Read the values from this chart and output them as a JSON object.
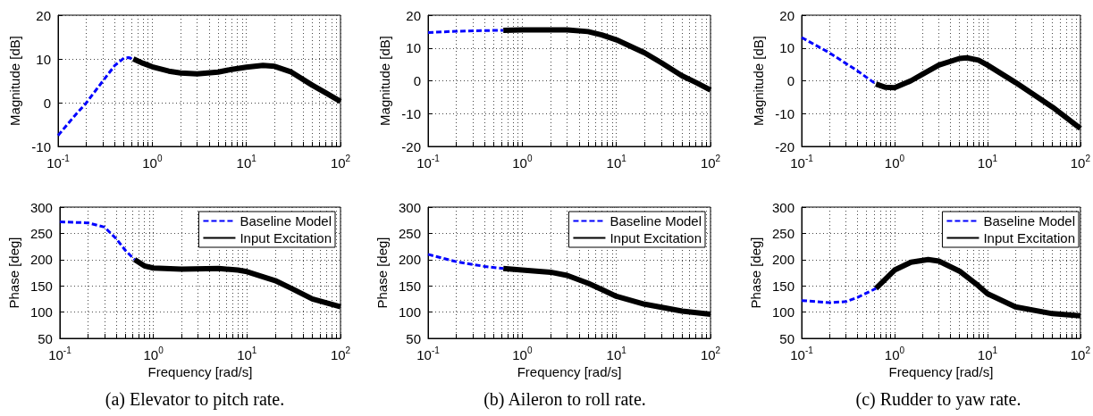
{
  "chart_data": [
    {
      "type": "line",
      "ylabel": "Magnitude [dB]",
      "xlim": [
        0.1,
        100
      ],
      "ylim": [
        -10,
        20
      ],
      "log": "x",
      "grid": true,
      "legend": false,
      "xticks": [
        {
          "value": 0.1,
          "label": "10$^{-1}$"
        },
        {
          "value": 1,
          "label": "10$^{0}$"
        },
        {
          "value": 10,
          "label": "10$^{1}$"
        },
        {
          "value": 100,
          "label": "10$^{2}$"
        }
      ],
      "yticks": [
        -10,
        0,
        10,
        20
      ],
      "series": [
        {
          "color": "#0000ff",
          "line_style": "dashed",
          "x": [
            0.1,
            0.15,
            0.2,
            0.3,
            0.4,
            0.5,
            0.56,
            0.63
          ],
          "values": [
            -7.5,
            -3,
            0,
            5,
            8.5,
            10.2,
            10.3,
            10
          ]
        },
        {
          "color": "#000000",
          "line_style": "solid",
          "x": [
            0.63,
            0.8,
            1,
            1.5,
            2,
            3,
            5,
            7,
            10,
            15,
            20,
            30,
            50,
            70,
            100
          ],
          "values": [
            10,
            9,
            8.2,
            7.2,
            6.8,
            6.6,
            7,
            7.6,
            8.1,
            8.5,
            8.3,
            7,
            4,
            2.2,
            0.3
          ]
        }
      ]
    },
    {
      "type": "line",
      "ylabel": "Magnitude [dB]",
      "xlim": [
        0.1,
        100
      ],
      "ylim": [
        -20,
        20
      ],
      "log": "x",
      "grid": true,
      "legend": false,
      "xticks": [
        {
          "value": 0.1,
          "label": "10$^{-1}$"
        },
        {
          "value": 1,
          "label": "10$^{0}$"
        },
        {
          "value": 10,
          "label": "10$^{1}$"
        },
        {
          "value": 100,
          "label": "10$^{2}$"
        }
      ],
      "yticks": [
        -20,
        -10,
        0,
        10,
        20
      ],
      "series": [
        {
          "color": "#0000ff",
          "line_style": "dashed",
          "x": [
            0.1,
            0.2,
            0.4,
            0.63
          ],
          "values": [
            14.7,
            15.1,
            15.3,
            15.4
          ]
        },
        {
          "color": "#000000",
          "line_style": "solid",
          "x": [
            0.63,
            1,
            2,
            3,
            5,
            7,
            10,
            20,
            30,
            50,
            70,
            100
          ],
          "values": [
            15.4,
            15.5,
            15.5,
            15.5,
            15,
            14,
            12.5,
            8.5,
            5.5,
            1.5,
            -0.5,
            -2.8
          ]
        }
      ]
    },
    {
      "type": "line",
      "ylabel": "Magnitude [dB]",
      "xlim": [
        0.1,
        100
      ],
      "ylim": [
        -20,
        20
      ],
      "log": "x",
      "grid": true,
      "legend": false,
      "xticks": [
        {
          "value": 0.1,
          "label": "10$^{-1}$"
        },
        {
          "value": 1,
          "label": "10$^{0}$"
        },
        {
          "value": 10,
          "label": "10$^{1}$"
        },
        {
          "value": 100,
          "label": "10$^{2}$"
        }
      ],
      "yticks": [
        -20,
        -10,
        0,
        10,
        20
      ],
      "series": [
        {
          "color": "#0000ff",
          "line_style": "dashed",
          "x": [
            0.1,
            0.2,
            0.4,
            0.63
          ],
          "values": [
            13.2,
            8.5,
            3,
            -1
          ]
        },
        {
          "color": "#000000",
          "line_style": "solid",
          "x": [
            0.63,
            0.8,
            1,
            1.5,
            2,
            3,
            5,
            6,
            8,
            10,
            20,
            50,
            100
          ],
          "values": [
            -1,
            -2,
            -2.1,
            0,
            2,
            4.8,
            6.8,
            7,
            6.3,
            4.8,
            -0.5,
            -8,
            -14.5
          ]
        }
      ]
    },
    {
      "type": "line",
      "xlabel": "Frequency [rad/s]",
      "ylabel": "Phase [deg]",
      "xlim": [
        0.1,
        100
      ],
      "ylim": [
        50,
        300
      ],
      "log": "x",
      "grid": true,
      "legend": "top right",
      "xticks": [
        {
          "value": 0.1,
          "label": "10$^{-1}$"
        },
        {
          "value": 1,
          "label": "10$^{0}$"
        },
        {
          "value": 10,
          "label": "10$^{1}$"
        },
        {
          "value": 100,
          "label": "10$^{2}$"
        }
      ],
      "yticks": [
        50,
        100,
        150,
        200,
        250,
        300
      ],
      "annotations": [
        "(a) Elevator to pitch rate."
      ],
      "series": [
        {
          "name": "Baseline Model",
          "color": "#0000ff",
          "line_style": "dashed",
          "x": [
            0.1,
            0.2,
            0.3,
            0.4,
            0.5,
            0.63
          ],
          "values": [
            272,
            270,
            262,
            240,
            218,
            200
          ]
        },
        {
          "name": "Input Excitation",
          "color": "#000000",
          "line_style": "solid",
          "x": [
            0.63,
            0.8,
            1,
            2,
            5,
            8,
            10,
            20,
            30,
            50,
            100
          ],
          "values": [
            200,
            188,
            184,
            182,
            183,
            180,
            177,
            160,
            145,
            125,
            110
          ]
        }
      ]
    },
    {
      "type": "line",
      "xlabel": "Frequency [rad/s]",
      "ylabel": "Phase [deg]",
      "xlim": [
        0.1,
        100
      ],
      "ylim": [
        50,
        300
      ],
      "log": "x",
      "grid": true,
      "legend": "top right",
      "xticks": [
        {
          "value": 0.1,
          "label": "10$^{-1}$"
        },
        {
          "value": 1,
          "label": "10$^{0}$"
        },
        {
          "value": 10,
          "label": "10$^{1}$"
        },
        {
          "value": 100,
          "label": "10$^{2}$"
        }
      ],
      "yticks": [
        50,
        100,
        150,
        200,
        250,
        300
      ],
      "annotations": [
        "(b) Aileron to roll rate."
      ],
      "series": [
        {
          "name": "Baseline Model",
          "color": "#0000ff",
          "line_style": "dashed",
          "x": [
            0.1,
            0.2,
            0.4,
            0.63
          ],
          "values": [
            210,
            196,
            187,
            183
          ]
        },
        {
          "name": "Input Excitation",
          "color": "#000000",
          "line_style": "solid",
          "x": [
            0.63,
            1,
            2,
            3,
            5,
            7,
            10,
            20,
            50,
            100
          ],
          "values": [
            183,
            180,
            176,
            170,
            155,
            143,
            130,
            115,
            102,
            96
          ]
        }
      ]
    },
    {
      "type": "line",
      "xlabel": "Frequency [rad/s]",
      "ylabel": "Phase [deg]",
      "xlim": [
        0.1,
        100
      ],
      "ylim": [
        50,
        300
      ],
      "log": "x",
      "grid": true,
      "legend": "top right",
      "xticks": [
        {
          "value": 0.1,
          "label": "10$^{-1}$"
        },
        {
          "value": 1,
          "label": "10$^{0}$"
        },
        {
          "value": 10,
          "label": "10$^{1}$"
        },
        {
          "value": 100,
          "label": "10$^{2}$"
        }
      ],
      "yticks": [
        50,
        100,
        150,
        200,
        250,
        300
      ],
      "annotations": [
        "(c) Rudder to yaw rate."
      ],
      "series": [
        {
          "name": "Baseline Model",
          "color": "#0000ff",
          "line_style": "dashed",
          "x": [
            0.1,
            0.2,
            0.3,
            0.4,
            0.63
          ],
          "values": [
            122,
            118,
            120,
            128,
            145
          ]
        },
        {
          "name": "Input Excitation",
          "color": "#000000",
          "line_style": "solid",
          "x": [
            0.63,
            1,
            1.5,
            2.3,
            3,
            5,
            8,
            10,
            20,
            50,
            100
          ],
          "values": [
            145,
            180,
            195,
            200,
            197,
            178,
            150,
            135,
            110,
            97,
            93
          ]
        }
      ]
    }
  ]
}
